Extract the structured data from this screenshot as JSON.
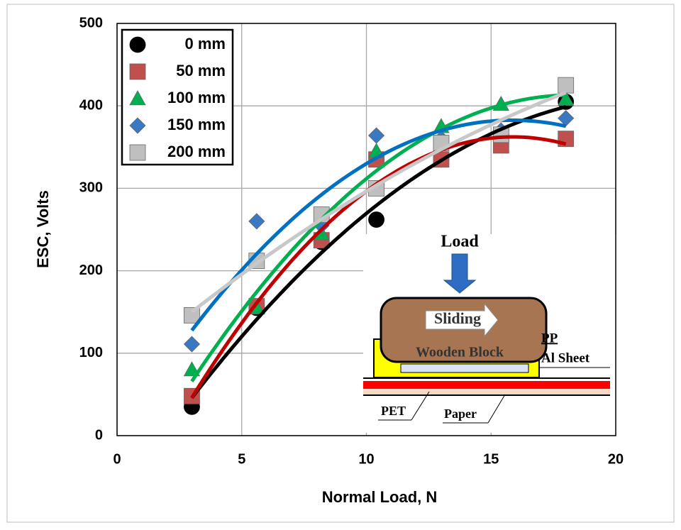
{
  "chart_data": {
    "type": "scatter",
    "x_label": "Normal Load, N",
    "y_label": "ESC, Volts",
    "x": [
      3,
      5.6,
      8.2,
      10.4,
      13,
      15.4,
      18
    ],
    "series": [
      {
        "name": "0 mm",
        "color": "#000000",
        "trend_color": "#000000",
        "marker": "circle",
        "values": [
          35,
          155,
          235,
          262,
          335,
          365,
          405
        ]
      },
      {
        "name": "50 mm",
        "color": "#c0504d",
        "trend_color": "#c00000",
        "marker": "square",
        "values": [
          48,
          157,
          237,
          335,
          335,
          352,
          360
        ]
      },
      {
        "name": "100 mm",
        "color": "#00b050",
        "trend_color": "#00b050",
        "marker": "triangle",
        "values": [
          80,
          155,
          245,
          345,
          375,
          402,
          408
        ]
      },
      {
        "name": "150 mm",
        "color": "#3a78c3",
        "trend_color": "#0070c0",
        "marker": "diamond",
        "values": [
          111,
          260,
          255,
          364,
          360,
          370,
          385
        ]
      },
      {
        "name": "200 mm",
        "color": "#bfbfbf",
        "trend_color": "#c8c8c8",
        "marker": "square",
        "values": [
          146,
          212,
          268,
          300,
          355,
          365,
          425
        ]
      }
    ],
    "trendline": "poly2",
    "xlim": [
      0,
      20
    ],
    "xticks": [
      0,
      5,
      10,
      15,
      20
    ],
    "ylim": [
      0,
      500
    ],
    "yticks": [
      0,
      100,
      200,
      300,
      400,
      500
    ],
    "grid": true,
    "legend": "top-left",
    "inset": {
      "load": "Load",
      "sliding": "Sliding",
      "block": "Wooden Block",
      "pp": "PP",
      "al": "Al Sheet",
      "pet": "PET",
      "paper": "Paper"
    }
  }
}
